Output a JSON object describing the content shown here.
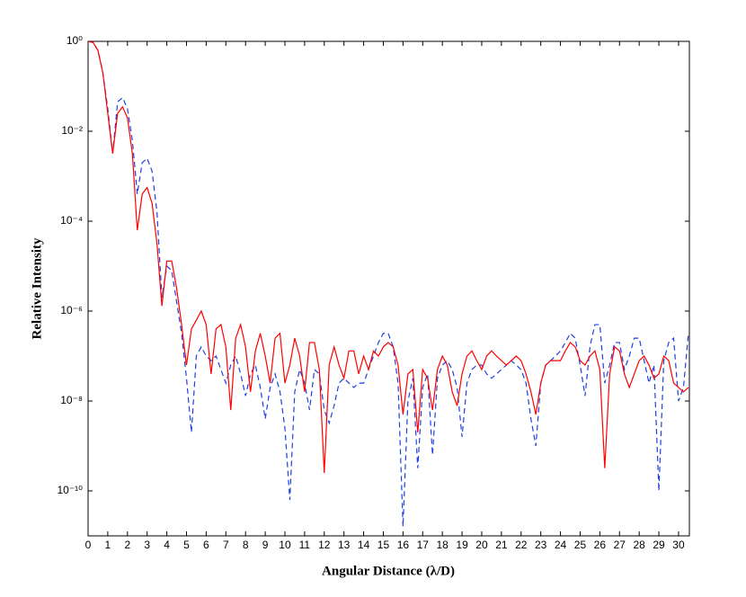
{
  "chart_data": {
    "type": "line",
    "x_label": "Angular Distance (λ/D)",
    "y_label": "Relative Intensity",
    "yscale": "log",
    "xlim": [
      0,
      30.55
    ],
    "ylim": [
      1e-11,
      1
    ],
    "xticks": [
      0,
      1,
      2,
      3,
      4,
      5,
      6,
      7,
      8,
      9,
      10,
      11,
      12,
      13,
      14,
      15,
      16,
      17,
      18,
      19,
      20,
      21,
      22,
      23,
      24,
      25,
      26,
      27,
      28,
      29,
      30
    ],
    "yticks": [
      {
        "value": 1,
        "label": "10⁰"
      },
      {
        "value": 0.01,
        "label": "10⁻²"
      },
      {
        "value": 0.0001,
        "label": "10⁻⁴"
      },
      {
        "value": 1e-06,
        "label": "10⁻⁶"
      },
      {
        "value": 1e-08,
        "label": "10⁻⁸"
      },
      {
        "value": 1e-10,
        "label": "10⁻¹⁰"
      }
    ],
    "x": [
      0,
      0.25,
      0.5,
      0.75,
      1,
      1.25,
      1.5,
      1.75,
      2,
      2.25,
      2.5,
      2.75,
      3,
      3.25,
      3.5,
      3.75,
      4,
      4.25,
      4.5,
      4.75,
      5,
      5.25,
      5.5,
      5.75,
      6,
      6.25,
      6.5,
      6.75,
      7,
      7.25,
      7.5,
      7.75,
      8,
      8.25,
      8.5,
      8.75,
      9,
      9.25,
      9.5,
      9.75,
      10,
      10.25,
      10.5,
      10.75,
      11,
      11.25,
      11.5,
      11.75,
      12,
      12.25,
      12.5,
      12.75,
      13,
      13.25,
      13.5,
      13.75,
      14,
      14.25,
      14.5,
      14.75,
      15,
      15.25,
      15.5,
      15.75,
      16,
      16.25,
      16.5,
      16.75,
      17,
      17.25,
      17.5,
      17.75,
      18,
      18.25,
      18.5,
      18.75,
      19,
      19.25,
      19.5,
      19.75,
      20,
      20.25,
      20.5,
      20.75,
      21,
      21.25,
      21.5,
      21.75,
      22,
      22.25,
      22.5,
      22.75,
      23,
      23.25,
      23.5,
      23.75,
      24,
      24.25,
      24.5,
      24.75,
      25,
      25.25,
      25.5,
      25.75,
      26,
      26.25,
      26.5,
      26.75,
      27,
      27.25,
      27.5,
      27.75,
      28,
      28.25,
      28.5,
      28.75,
      29,
      29.25,
      29.5,
      29.75,
      30,
      30.25,
      30.5
    ],
    "series": [
      {
        "color": "#ff0000",
        "linestyle": "solid",
        "values": [
          1,
          0.95,
          0.63,
          0.2,
          0.025,
          0.0032,
          0.025,
          0.035,
          0.02,
          0.0032,
          6.3e-05,
          0.0004,
          0.00056,
          0.00025,
          3.2e-05,
          1.3e-06,
          1.3e-05,
          1.3e-05,
          3.2e-06,
          5e-07,
          6.3e-08,
          4e-07,
          6.3e-07,
          1e-06,
          5e-07,
          4e-08,
          4e-07,
          5e-07,
          1.6e-07,
          6.3e-09,
          2.5e-07,
          5e-07,
          1.6e-07,
          1.6e-08,
          1.3e-07,
          3.2e-07,
          1e-07,
          2.5e-08,
          2.5e-07,
          3.2e-07,
          2.5e-08,
          6.3e-08,
          2.5e-07,
          1e-07,
          1.6e-08,
          2e-07,
          2e-07,
          5e-08,
          2.5e-10,
          6.3e-08,
          1.6e-07,
          6.3e-08,
          3.2e-08,
          1.3e-07,
          1.3e-07,
          4e-08,
          1e-07,
          5e-08,
          1.3e-07,
          1e-07,
          1.6e-07,
          2e-07,
          1.6e-07,
          6.3e-08,
          5e-09,
          4e-08,
          5e-08,
          2e-09,
          5e-08,
          3.2e-08,
          6.3e-09,
          5e-08,
          1e-07,
          6.3e-08,
          1.6e-08,
          7.9e-09,
          4e-08,
          1e-07,
          1.3e-07,
          7.9e-08,
          5e-08,
          1e-07,
          1.3e-07,
          1e-07,
          7.9e-08,
          6.3e-08,
          7.9e-08,
          1e-07,
          7.9e-08,
          4e-08,
          1.6e-08,
          5e-09,
          2.5e-08,
          6.3e-08,
          7.9e-08,
          7.9e-08,
          7.9e-08,
          1.3e-07,
          2e-07,
          1.6e-07,
          7.9e-08,
          6.3e-08,
          1e-07,
          1.3e-07,
          5e-08,
          3.2e-10,
          4e-08,
          1.6e-07,
          1.3e-07,
          4e-08,
          2e-08,
          4e-08,
          7.9e-08,
          1e-07,
          6.3e-08,
          3.2e-08,
          4e-08,
          1e-07,
          7.9e-08,
          2.5e-08,
          2e-08,
          1.6e-08,
          2e-08
        ]
      },
      {
        "color": "#2040e0",
        "linestyle": "dashed",
        "values": [
          1,
          0.95,
          0.63,
          0.2,
          0.032,
          0.0032,
          0.045,
          0.056,
          0.032,
          0.0063,
          0.0004,
          0.002,
          0.0025,
          0.0013,
          0.00016,
          2e-06,
          1e-05,
          7.9e-06,
          1.6e-06,
          3.2e-07,
          3.2e-08,
          2e-09,
          1e-07,
          1.6e-07,
          1e-07,
          7.9e-08,
          1e-07,
          5e-08,
          2.5e-08,
          6.3e-08,
          1e-07,
          4e-08,
          1.3e-08,
          4e-08,
          6.3e-08,
          2e-08,
          4e-09,
          2e-08,
          4e-08,
          1.6e-08,
          2.5e-09,
          6.3e-11,
          1.6e-08,
          5e-08,
          2.5e-08,
          6.3e-09,
          5e-08,
          4e-08,
          6.3e-09,
          3.2e-09,
          7.9e-09,
          2.5e-08,
          3.2e-08,
          2.5e-08,
          2e-08,
          2.5e-08,
          2.5e-08,
          5e-08,
          1e-07,
          2e-07,
          3.2e-07,
          3.2e-07,
          1.6e-07,
          2.5e-08,
          1.6e-11,
          1e-08,
          3.2e-08,
          3.2e-10,
          2e-08,
          4e-08,
          6.3e-10,
          3.2e-08,
          6.3e-08,
          7.9e-08,
          5e-08,
          2e-08,
          1.6e-09,
          2.5e-08,
          5e-08,
          6.3e-08,
          6.3e-08,
          4e-08,
          3.2e-08,
          4e-08,
          5e-08,
          6.3e-08,
          7.9e-08,
          6.3e-08,
          5e-08,
          2.5e-08,
          4e-09,
          1e-09,
          2.5e-08,
          6.3e-08,
          7.9e-08,
          1e-07,
          1.3e-07,
          2e-07,
          3.2e-07,
          2.5e-07,
          6.3e-08,
          1.3e-08,
          1.6e-07,
          5e-07,
          5e-07,
          2.5e-08,
          6.3e-08,
          2e-07,
          2e-07,
          5e-08,
          1e-07,
          2.5e-07,
          2.5e-07,
          7.9e-08,
          2.5e-08,
          6.3e-08,
          1e-10,
          7.9e-08,
          2e-07,
          2.5e-07,
          1e-08,
          2e-08,
          3.2e-07
        ]
      }
    ]
  }
}
